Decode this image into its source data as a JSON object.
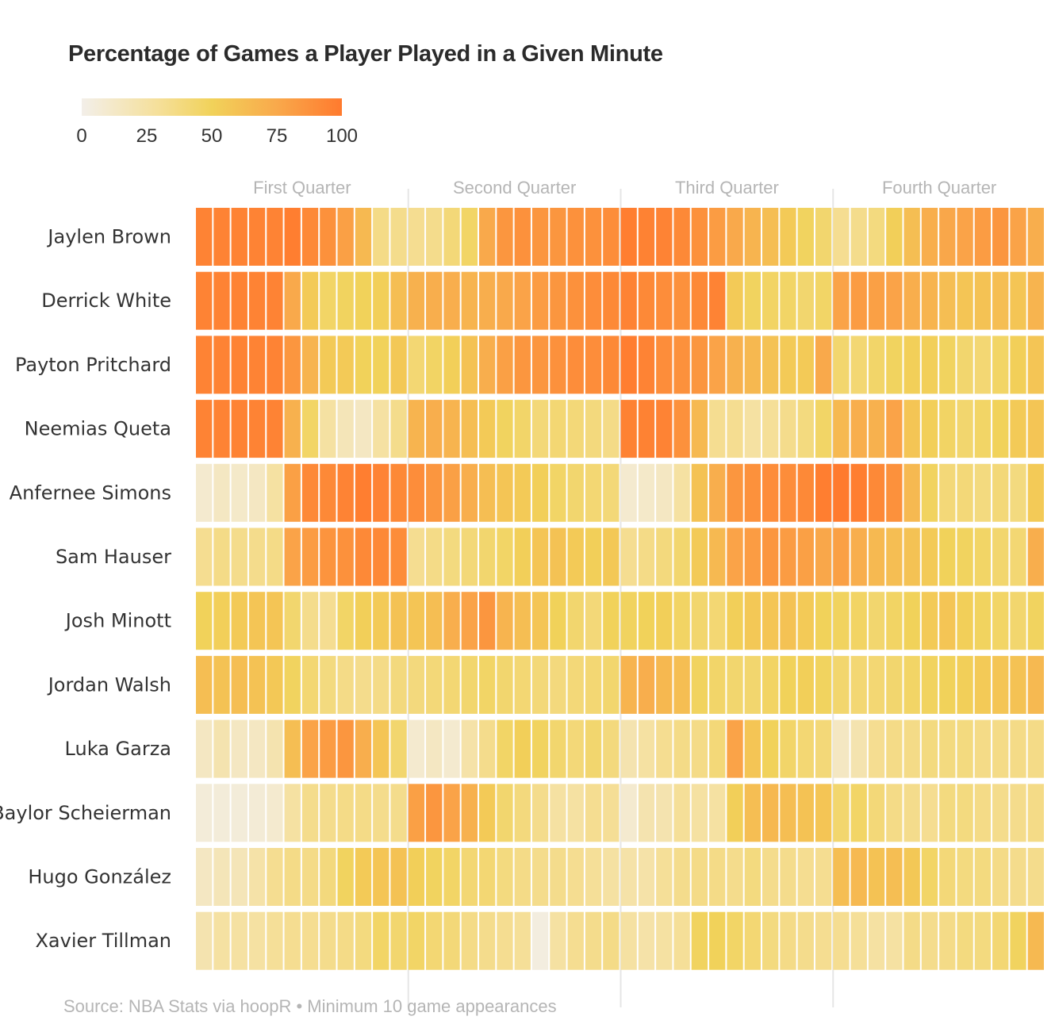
{
  "title": "Percentage of Games a Player Played in a Given Minute",
  "legend": {
    "ticks": [
      "0",
      "25",
      "50",
      "75",
      "100"
    ],
    "colors": [
      "#f3efe9",
      "#f5df98",
      "#f1d25a",
      "#f9a94b",
      "#ff7a2e"
    ]
  },
  "source": "Source: NBA Stats via hoopR • Minimum 10 game appearances",
  "chart_data": {
    "type": "heatmap",
    "title": "Percentage of Games a Player Played in a Given Minute",
    "x_groups": [
      "First Quarter",
      "Second Quarter",
      "Third Quarter",
      "Fourth Quarter"
    ],
    "minutes_per_group": 12,
    "value_range": [
      0,
      100
    ],
    "rows": [
      {
        "name": "Jaylen Brown",
        "values": [
          95,
          95,
          95,
          95,
          95,
          98,
          92,
          88,
          80,
          65,
          32,
          30,
          28,
          30,
          38,
          45,
          75,
          85,
          88,
          85,
          85,
          88,
          88,
          90,
          98,
          96,
          95,
          92,
          88,
          82,
          75,
          68,
          62,
          55,
          48,
          42,
          28,
          30,
          35,
          52,
          62,
          72,
          76,
          78,
          82,
          85,
          78,
          72
        ]
      },
      {
        "name": "Derrick White",
        "values": [
          95,
          95,
          95,
          95,
          95,
          75,
          55,
          45,
          48,
          50,
          52,
          62,
          70,
          72,
          72,
          68,
          72,
          75,
          78,
          82,
          85,
          88,
          90,
          92,
          95,
          92,
          90,
          88,
          92,
          95,
          55,
          48,
          46,
          45,
          42,
          45,
          78,
          82,
          80,
          78,
          72,
          68,
          62,
          58,
          60,
          62,
          58,
          68
        ]
      },
      {
        "name": "Payton Pritchard",
        "values": [
          95,
          95,
          95,
          95,
          95,
          85,
          68,
          55,
          55,
          50,
          50,
          56,
          40,
          46,
          52,
          60,
          72,
          80,
          85,
          85,
          88,
          90,
          90,
          92,
          98,
          95,
          90,
          88,
          85,
          78,
          70,
          66,
          60,
          55,
          55,
          75,
          42,
          40,
          44,
          48,
          52,
          52,
          48,
          42,
          40,
          45,
          52,
          58
        ]
      },
      {
        "name": "Neemias Queta",
        "values": [
          95,
          95,
          95,
          95,
          95,
          70,
          45,
          22,
          15,
          12,
          22,
          30,
          68,
          72,
          68,
          62,
          55,
          48,
          44,
          38,
          40,
          38,
          36,
          32,
          96,
          96,
          95,
          88,
          65,
          28,
          28,
          22,
          25,
          30,
          35,
          45,
          65,
          72,
          70,
          78,
          58,
          52,
          46,
          42,
          45,
          50,
          55,
          58
        ]
      },
      {
        "name": "Anfernee Simons",
        "values": [
          8,
          12,
          10,
          12,
          22,
          80,
          92,
          92,
          95,
          98,
          95,
          92,
          90,
          85,
          80,
          72,
          62,
          58,
          55,
          52,
          45,
          42,
          40,
          38,
          8,
          10,
          12,
          22,
          60,
          72,
          85,
          88,
          90,
          90,
          92,
          98,
          100,
          98,
          92,
          88,
          65,
          48,
          38,
          38,
          35,
          38,
          35,
          55
        ]
      },
      {
        "name": "Sam Hauser",
        "values": [
          28,
          32,
          30,
          30,
          32,
          78,
          82,
          86,
          88,
          92,
          92,
          90,
          28,
          32,
          35,
          38,
          42,
          45,
          52,
          58,
          60,
          55,
          52,
          56,
          28,
          32,
          36,
          42,
          55,
          65,
          78,
          82,
          85,
          82,
          80,
          76,
          80,
          72,
          65,
          62,
          60,
          55,
          50,
          48,
          45,
          42,
          40,
          72
        ]
      },
      {
        "name": "Josh Minott",
        "values": [
          50,
          52,
          55,
          58,
          58,
          42,
          30,
          28,
          45,
          52,
          55,
          60,
          58,
          62,
          72,
          78,
          85,
          68,
          62,
          58,
          50,
          42,
          38,
          50,
          48,
          50,
          52,
          46,
          42,
          40,
          52,
          56,
          58,
          60,
          55,
          50,
          48,
          46,
          42,
          46,
          50,
          55,
          58,
          52,
          48,
          45,
          42,
          48
        ]
      },
      {
        "name": "Jordan Walsh",
        "values": [
          62,
          60,
          62,
          60,
          56,
          48,
          40,
          35,
          32,
          30,
          32,
          36,
          36,
          38,
          40,
          42,
          45,
          42,
          40,
          38,
          36,
          38,
          40,
          42,
          68,
          72,
          66,
          62,
          48,
          44,
          42,
          42,
          46,
          50,
          52,
          48,
          42,
          40,
          40,
          42,
          45,
          48,
          50,
          52,
          55,
          58,
          60,
          65
        ]
      },
      {
        "name": "Luka Garza",
        "values": [
          12,
          18,
          12,
          12,
          18,
          62,
          78,
          82,
          85,
          72,
          58,
          42,
          8,
          12,
          8,
          20,
          30,
          45,
          52,
          48,
          42,
          38,
          42,
          36,
          18,
          22,
          28,
          32,
          32,
          38,
          78,
          58,
          50,
          44,
          40,
          38,
          12,
          18,
          28,
          32,
          32,
          35,
          35,
          35,
          32,
          32,
          32,
          32
        ]
      },
      {
        "name": "Baylor Scheierman",
        "values": [
          5,
          5,
          5,
          6,
          8,
          22,
          30,
          30,
          32,
          32,
          30,
          30,
          80,
          85,
          78,
          70,
          55,
          42,
          36,
          30,
          22,
          22,
          28,
          26,
          8,
          18,
          18,
          25,
          22,
          22,
          52,
          62,
          66,
          62,
          60,
          58,
          42,
          45,
          38,
          32,
          30,
          28,
          35,
          35,
          32,
          30,
          30,
          32
        ]
      },
      {
        "name": "Hugo González",
        "values": [
          12,
          15,
          15,
          20,
          28,
          32,
          32,
          36,
          48,
          55,
          58,
          60,
          52,
          48,
          45,
          40,
          40,
          35,
          32,
          30,
          30,
          28,
          25,
          22,
          20,
          20,
          25,
          30,
          32,
          32,
          30,
          35,
          30,
          30,
          28,
          28,
          62,
          65,
          60,
          62,
          56,
          45,
          38,
          35,
          35,
          32,
          30,
          30
        ]
      },
      {
        "name": "Xavier Tillman",
        "values": [
          18,
          22,
          22,
          22,
          25,
          28,
          28,
          30,
          32,
          35,
          45,
          42,
          45,
          40,
          38,
          32,
          30,
          28,
          25,
          3,
          22,
          28,
          30,
          32,
          22,
          20,
          22,
          25,
          48,
          50,
          45,
          40,
          35,
          32,
          30,
          28,
          28,
          25,
          22,
          22,
          32,
          30,
          32,
          35,
          35,
          40,
          48,
          65
        ]
      }
    ]
  }
}
